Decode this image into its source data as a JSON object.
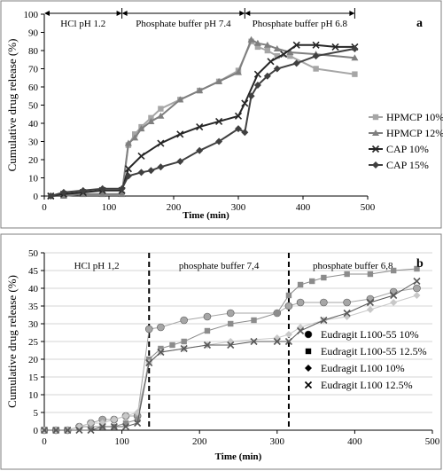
{
  "chart_data": [
    {
      "type": "line",
      "panel_label": "a",
      "xlabel": "Time (min)",
      "ylabel": "Cumulative drug release (%)",
      "xlim": [
        0,
        500
      ],
      "ylim": [
        0,
        100
      ],
      "xticks": [
        0,
        100,
        200,
        300,
        400,
        500
      ],
      "yticks": [
        0,
        10,
        20,
        30,
        40,
        50,
        60,
        70,
        80,
        90,
        100
      ],
      "grid": false,
      "legend_position": "right",
      "phases": [
        {
          "label": "HCl pH 1.2",
          "start": 0,
          "end": 120,
          "arrows": true
        },
        {
          "label": "Phosphate buffer pH 7.4",
          "start": 120,
          "end": 310,
          "arrows": true
        },
        {
          "label": "Phosphate buffer pH 6.8",
          "start": 310,
          "end": 480,
          "arrows": true
        }
      ],
      "series": [
        {
          "name": "HPMCP 10%",
          "color": "#a6a6a6",
          "marker": "square",
          "x": [
            10,
            30,
            60,
            90,
            120,
            130,
            140,
            150,
            165,
            180,
            210,
            240,
            270,
            300,
            320,
            330,
            345,
            360,
            380,
            420,
            480
          ],
          "y": [
            0,
            1,
            1,
            1,
            1,
            28,
            34,
            38,
            43,
            48,
            53,
            58,
            63,
            69,
            85,
            82,
            80,
            77,
            77,
            70,
            67
          ]
        },
        {
          "name": "HPMCP 12%",
          "color": "#7f7f7f",
          "marker": "triangle",
          "x": [
            10,
            30,
            60,
            90,
            120,
            130,
            140,
            150,
            165,
            180,
            210,
            240,
            270,
            300,
            320,
            330,
            345,
            360,
            380,
            420,
            480
          ],
          "y": [
            0,
            0,
            1,
            1,
            1,
            29,
            32,
            37,
            41,
            44,
            53,
            58,
            63,
            68,
            86,
            84,
            83,
            81,
            79,
            78,
            76
          ]
        },
        {
          "name": "CAP 10%",
          "color": "#262626",
          "marker": "x",
          "x": [
            10,
            30,
            60,
            90,
            120,
            130,
            150,
            180,
            210,
            240,
            270,
            300,
            310,
            330,
            350,
            370,
            390,
            420,
            450,
            480
          ],
          "y": [
            0,
            1,
            2,
            3,
            3,
            15,
            22,
            29,
            34,
            38,
            41,
            44,
            51,
            67,
            74,
            78,
            83,
            83,
            82,
            82
          ]
        },
        {
          "name": "CAP 15%",
          "color": "#404040",
          "marker": "diamond",
          "x": [
            10,
            30,
            60,
            90,
            120,
            130,
            150,
            165,
            180,
            210,
            240,
            270,
            300,
            310,
            320,
            330,
            345,
            360,
            390,
            420,
            480
          ],
          "y": [
            0,
            2,
            3,
            4,
            4,
            11,
            13,
            14,
            16,
            19,
            25,
            30,
            37,
            35,
            55,
            61,
            66,
            70,
            73,
            77,
            81
          ]
        }
      ]
    },
    {
      "type": "line",
      "panel_label": "b",
      "xlabel": "Time (min)",
      "ylabel": "Cumulative drug release (%)",
      "xlim": [
        0,
        500
      ],
      "ylim": [
        0,
        50
      ],
      "xticks": [
        0,
        100,
        200,
        300,
        400,
        500
      ],
      "yticks": [
        0,
        5,
        10,
        15,
        20,
        25,
        30,
        35,
        40,
        45,
        50
      ],
      "grid": true,
      "legend_position": "right",
      "phases": [
        {
          "label": "HCl pH 1,2",
          "start": 0,
          "end": 135
        },
        {
          "label": "phosphate buffer 7,4",
          "start": 135,
          "end": 315
        },
        {
          "label": "phosphate buffer 6,8",
          "start": 315,
          "end": 480
        }
      ],
      "dividers": [
        135,
        315
      ],
      "series": [
        {
          "name": "Eudragit L100-55 10%",
          "color": "#a6a6a6",
          "marker": "circle",
          "x": [
            0,
            15,
            30,
            45,
            60,
            75,
            90,
            105,
            120,
            135,
            150,
            180,
            210,
            240,
            300,
            315,
            330,
            360,
            390,
            420,
            450,
            480
          ],
          "y": [
            0,
            0,
            0,
            1,
            2,
            3,
            3,
            4,
            4,
            28.5,
            29,
            31,
            32,
            33,
            33,
            35,
            36,
            36,
            36,
            37,
            39,
            40
          ]
        },
        {
          "name": "Eudragit L100-55 12.5%",
          "color": "#8c8c8c",
          "marker": "square",
          "x": [
            0,
            15,
            30,
            45,
            60,
            75,
            90,
            105,
            120,
            135,
            150,
            165,
            180,
            210,
            240,
            270,
            300,
            315,
            330,
            345,
            360,
            390,
            420,
            450,
            480
          ],
          "y": [
            0,
            0,
            0,
            1,
            1,
            1,
            1,
            2,
            3,
            20,
            23,
            24,
            25,
            28,
            30,
            31,
            33,
            38,
            41,
            42,
            43,
            44,
            44,
            45,
            45.5
          ]
        },
        {
          "name": "Eudragit L100 10%",
          "color": "#c8c8c8",
          "marker": "diamond",
          "x": [
            0,
            15,
            30,
            45,
            60,
            75,
            90,
            105,
            120,
            135,
            150,
            180,
            210,
            240,
            300,
            315,
            330,
            360,
            390,
            420,
            450,
            480
          ],
          "y": [
            0,
            0,
            0,
            1,
            2,
            2,
            3,
            4,
            5,
            19,
            22,
            23,
            24,
            25,
            26,
            27,
            29,
            31,
            32,
            34,
            36,
            38
          ]
        },
        {
          "name": "Eudragit L100 12.5%",
          "color": "#595959",
          "marker": "x",
          "x": [
            0,
            15,
            30,
            45,
            60,
            75,
            90,
            105,
            120,
            135,
            150,
            180,
            210,
            240,
            270,
            300,
            315,
            330,
            360,
            390,
            420,
            450,
            480
          ],
          "y": [
            0,
            0,
            0,
            0,
            0,
            1,
            1,
            1,
            2,
            19,
            22,
            23,
            24,
            24,
            25,
            25,
            25,
            28,
            31,
            33,
            36,
            38,
            42
          ]
        }
      ]
    }
  ]
}
